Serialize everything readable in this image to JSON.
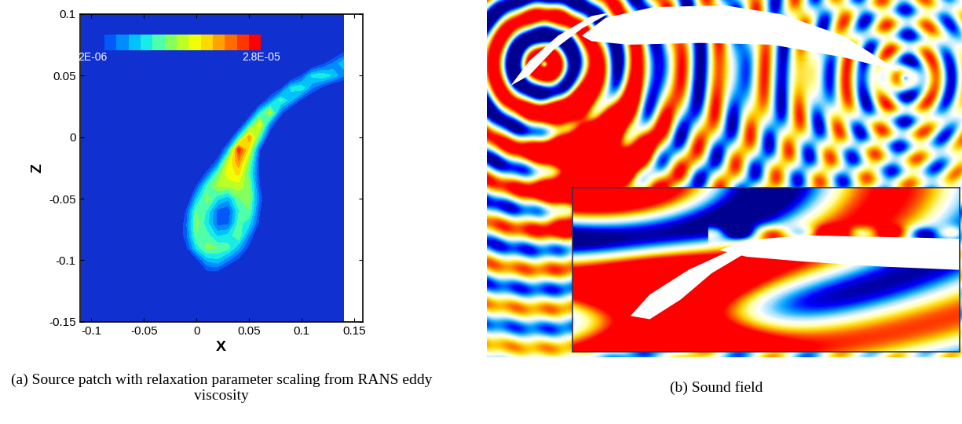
{
  "chart_data": [
    {
      "type": "contour",
      "xlabel": "X",
      "ylabel": "Z",
      "caption": "(a) Source patch with relaxation parameter scaling from RANS eddy viscosity",
      "x": [
        -0.11,
        -0.1,
        -0.09,
        -0.08,
        -0.07,
        -0.06,
        -0.05,
        -0.04,
        -0.03,
        -0.02,
        -0.01,
        0,
        0.01,
        0.02,
        0.03,
        0.04,
        0.05,
        0.06,
        0.07,
        0.08,
        0.09,
        0.1,
        0.11,
        0.12,
        0.13,
        0.14
      ],
      "z": [
        -0.15,
        -0.14,
        -0.13,
        -0.12,
        -0.11,
        -0.1,
        -0.09,
        -0.08,
        -0.07,
        -0.06,
        -0.05,
        -0.04,
        -0.03,
        -0.02,
        -0.01,
        0,
        0.01,
        0.02,
        0.03,
        0.04,
        0.05,
        0.06,
        0.07,
        0.08,
        0.09,
        0.1
      ],
      "values": [
        [
          0,
          0,
          0,
          0,
          0,
          0,
          0,
          0,
          0,
          0,
          0,
          0,
          0,
          0,
          0,
          0,
          0,
          0,
          0,
          0,
          0,
          0,
          0,
          0,
          0,
          0
        ],
        [
          0,
          0,
          0,
          0,
          0,
          0,
          0,
          0,
          0,
          0,
          0,
          0,
          0,
          0,
          0,
          0,
          0,
          0,
          0,
          0,
          0,
          0,
          0,
          0,
          0,
          0
        ],
        [
          0,
          0,
          0,
          0,
          0,
          0,
          0,
          0,
          0,
          0,
          0,
          0,
          0,
          0,
          0,
          0,
          0,
          0,
          0,
          0,
          0,
          0,
          0,
          0,
          0,
          0
        ],
        [
          0,
          0,
          0,
          0,
          0,
          0,
          0,
          0,
          0,
          0,
          0,
          0,
          0,
          0,
          0,
          0,
          0,
          0,
          0,
          0,
          0,
          0,
          0,
          0,
          0,
          0
        ],
        [
          0,
          0,
          0,
          0,
          0,
          0,
          0,
          0,
          0,
          0,
          0,
          0,
          3e-06,
          3e-06,
          0,
          0,
          0,
          0,
          0,
          0,
          0,
          0,
          0,
          0,
          0,
          0
        ],
        [
          0,
          0,
          0,
          0,
          0,
          0,
          0,
          0,
          0,
          0,
          0,
          3e-06,
          8e-06,
          9e-06,
          6e-06,
          3e-06,
          0,
          0,
          0,
          0,
          0,
          0,
          0,
          0,
          0,
          0
        ],
        [
          0,
          0,
          0,
          0,
          0,
          0,
          0,
          0,
          0,
          0,
          3e-06,
          1e-05,
          1.4e-05,
          1.3e-05,
          1.2e-05,
          8e-06,
          3e-06,
          0,
          0,
          0,
          0,
          0,
          0,
          0,
          0,
          0
        ],
        [
          0,
          0,
          0,
          0,
          0,
          0,
          0,
          0,
          0,
          0,
          5e-06,
          1.3e-05,
          1.2e-05,
          9e-06,
          1e-05,
          1.3e-05,
          6e-06,
          0,
          0,
          0,
          0,
          0,
          0,
          0,
          0,
          0
        ],
        [
          0,
          0,
          0,
          0,
          0,
          0,
          0,
          0,
          0,
          0,
          5e-06,
          1.4e-05,
          1e-05,
          5e-06,
          5e-06,
          1.2e-05,
          1e-05,
          3e-06,
          0,
          0,
          0,
          0,
          0,
          0,
          0,
          0
        ],
        [
          0,
          0,
          0,
          0,
          0,
          0,
          0,
          0,
          0,
          0,
          4e-06,
          1.3e-05,
          1.1e-05,
          5e-06,
          4e-06,
          1.1e-05,
          1.3e-05,
          4e-06,
          0,
          0,
          0,
          0,
          0,
          0,
          0,
          0
        ],
        [
          0,
          0,
          0,
          0,
          0,
          0,
          0,
          0,
          0,
          0,
          0,
          9e-06,
          1.4e-05,
          1e-05,
          8e-06,
          1.3e-05,
          1.4e-05,
          5e-06,
          0,
          0,
          0,
          0,
          0,
          0,
          0,
          0
        ],
        [
          0,
          0,
          0,
          0,
          0,
          0,
          0,
          0,
          0,
          0,
          0,
          4e-06,
          1.2e-05,
          1.5e-05,
          1.5e-05,
          1.6e-05,
          1.4e-05,
          4e-06,
          0,
          0,
          0,
          0,
          0,
          0,
          0,
          0
        ],
        [
          0,
          0,
          0,
          0,
          0,
          0,
          0,
          0,
          0,
          0,
          0,
          0,
          5e-06,
          1.3e-05,
          1.8e-05,
          1.9e-05,
          1.2e-05,
          3e-06,
          0,
          0,
          0,
          0,
          0,
          0,
          0,
          0
        ],
        [
          0,
          0,
          0,
          0,
          0,
          0,
          0,
          0,
          0,
          0,
          0,
          0,
          0,
          5e-06,
          1.7e-05,
          2.2e-05,
          1.4e-05,
          3e-06,
          0,
          0,
          0,
          0,
          0,
          0,
          0,
          0
        ],
        [
          0,
          0,
          0,
          0,
          0,
          0,
          0,
          0,
          0,
          0,
          0,
          0,
          0,
          0,
          8e-06,
          2.6e-05,
          1.8e-05,
          4e-06,
          0,
          0,
          0,
          0,
          0,
          0,
          0,
          0
        ],
        [
          0,
          0,
          0,
          0,
          0,
          0,
          0,
          0,
          0,
          0,
          0,
          0,
          0,
          0,
          0,
          1e-05,
          2.2e-05,
          1.2e-05,
          0,
          0,
          0,
          0,
          0,
          0,
          0,
          0
        ],
        [
          0,
          0,
          0,
          0,
          0,
          0,
          0,
          0,
          0,
          0,
          0,
          0,
          0,
          0,
          0,
          0,
          1e-05,
          1.8e-05,
          6e-06,
          0,
          0,
          0,
          0,
          0,
          0,
          0
        ],
        [
          0,
          0,
          0,
          0,
          0,
          0,
          0,
          0,
          0,
          0,
          0,
          0,
          0,
          0,
          0,
          0,
          0,
          1e-05,
          1.6e-05,
          5e-06,
          0,
          0,
          0,
          0,
          0,
          0
        ],
        [
          0,
          0,
          0,
          0,
          0,
          0,
          0,
          0,
          0,
          0,
          0,
          0,
          0,
          0,
          0,
          0,
          0,
          0,
          6e-06,
          1.2e-05,
          8e-06,
          3e-06,
          0,
          0,
          0,
          0
        ],
        [
          0,
          0,
          0,
          0,
          0,
          0,
          0,
          0,
          0,
          0,
          0,
          0,
          0,
          0,
          0,
          0,
          0,
          0,
          0,
          3e-06,
          1e-05,
          1.1e-05,
          6e-06,
          3e-06,
          0,
          0
        ],
        [
          0,
          0,
          0,
          0,
          0,
          0,
          0,
          0,
          0,
          0,
          0,
          0,
          0,
          0,
          0,
          0,
          0,
          0,
          0,
          0,
          0,
          4e-06,
          1e-05,
          1.1e-05,
          9e-06,
          6e-06
        ],
        [
          0,
          0,
          0,
          0,
          0,
          0,
          0,
          0,
          0,
          0,
          0,
          0,
          0,
          0,
          0,
          0,
          0,
          0,
          0,
          0,
          0,
          0,
          0,
          3e-06,
          6e-06,
          9e-06
        ],
        [
          0,
          0,
          0,
          0,
          0,
          0,
          0,
          0,
          0,
          0,
          0,
          0,
          0,
          0,
          0,
          0,
          0,
          0,
          0,
          0,
          0,
          0,
          0,
          0,
          0,
          3e-06
        ],
        [
          0,
          0,
          0,
          0,
          0,
          0,
          0,
          0,
          0,
          0,
          0,
          0,
          0,
          0,
          0,
          0,
          0,
          0,
          0,
          0,
          0,
          0,
          0,
          0,
          0,
          0
        ],
        [
          0,
          0,
          0,
          0,
          0,
          0,
          0,
          0,
          0,
          0,
          0,
          0,
          0,
          0,
          0,
          0,
          0,
          0,
          0,
          0,
          0,
          0,
          0,
          0,
          0,
          0
        ],
        [
          0,
          0,
          0,
          0,
          0,
          0,
          0,
          0,
          0,
          0,
          0,
          0,
          0,
          0,
          0,
          0,
          0,
          0,
          0,
          0,
          0,
          0,
          0,
          0,
          0,
          0
        ]
      ],
      "xlim": [
        -0.111,
        0.158
      ],
      "ylim": [
        -0.15,
        0.1
      ],
      "xticks": [
        -0.1,
        -0.05,
        0,
        0.05,
        0.1,
        0.15
      ],
      "yticks": [
        -0.15,
        -0.1,
        -0.05,
        0,
        0.05,
        0.1
      ],
      "colorbar": {
        "range": [
          2e-06,
          2.8e-05
        ],
        "ticks": [
          {
            "value": 2e-06,
            "label": "2E-06"
          },
          {
            "value": 2.8e-05,
            "label": "2.8E-05"
          }
        ]
      }
    },
    {
      "type": "image",
      "caption": "(b) Sound field"
    }
  ]
}
